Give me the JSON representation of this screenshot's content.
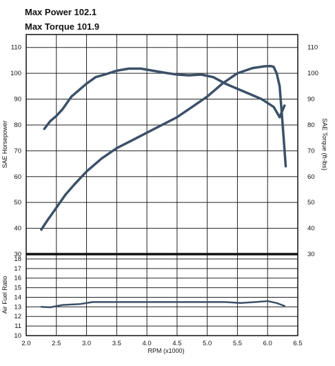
{
  "header": {
    "max_power": "Max Power 102.1",
    "max_torque": "Max Torque 101.9"
  },
  "chart_data": [
    {
      "type": "line",
      "xlabel": "RPM (x1000)",
      "ylabel": "SAE Horsepower",
      "ylabel_right": "SAE Torque (ft-lbs)",
      "xlim": [
        2.0,
        6.5
      ],
      "ylim": [
        30,
        115
      ],
      "x_ticks": [
        "2.0",
        "2.5",
        "3.0",
        "3.5",
        "4.0",
        "4.5",
        "5.0",
        "5.5",
        "6.0",
        "6.5"
      ],
      "y_ticks": [
        "30",
        "40",
        "50",
        "60",
        "70",
        "80",
        "90",
        "100",
        "110"
      ],
      "grid": true,
      "series": [
        {
          "x": [
            2.25,
            2.35,
            2.5,
            2.65,
            2.8,
            3.0,
            3.1,
            3.25,
            3.5,
            3.75,
            4.0,
            4.25,
            4.5,
            4.75,
            5.0,
            5.25,
            5.5,
            5.75,
            5.95,
            6.05,
            6.1,
            6.15,
            6.2,
            6.25,
            6.3
          ],
          "y": [
            39.5,
            43,
            48,
            53,
            57,
            62,
            64,
            67,
            71,
            74,
            77,
            80,
            83,
            87,
            91,
            96,
            100,
            102,
            102.7,
            102.8,
            102.5,
            100,
            95,
            80,
            64
          ]
        },
        {
          "x": [
            2.3,
            2.4,
            2.5,
            2.6,
            2.75,
            2.9,
            3.0,
            3.15,
            3.3,
            3.5,
            3.7,
            3.9,
            4.1,
            4.3,
            4.5,
            4.7,
            4.9,
            5.1,
            5.3,
            5.5,
            5.7,
            5.9,
            6.1,
            6.2,
            6.28
          ],
          "y": [
            78.5,
            81.5,
            83.5,
            86,
            91,
            94,
            96,
            98.5,
            99.5,
            101,
            101.8,
            101.8,
            101,
            100.2,
            99.5,
            99.2,
            99.5,
            98.5,
            96,
            94,
            92,
            90,
            87,
            83,
            87.5
          ]
        }
      ]
    },
    {
      "type": "line",
      "ylabel": "Air Fuel Ratio",
      "xlim": [
        2.0,
        6.5
      ],
      "ylim": [
        10,
        18.5
      ],
      "y_ticks": [
        "10",
        "11",
        "12",
        "13",
        "14",
        "15",
        "16",
        "17",
        "18"
      ],
      "grid": true,
      "series": [
        {
          "x": [
            2.25,
            2.4,
            2.6,
            2.9,
            3.1,
            3.5,
            4.0,
            4.5,
            5.0,
            5.3,
            5.55,
            5.8,
            6.0,
            6.15,
            6.28
          ],
          "y": [
            13.0,
            12.95,
            13.2,
            13.3,
            13.5,
            13.5,
            13.5,
            13.5,
            13.5,
            13.5,
            13.4,
            13.5,
            13.6,
            13.4,
            13.1
          ]
        }
      ]
    }
  ]
}
